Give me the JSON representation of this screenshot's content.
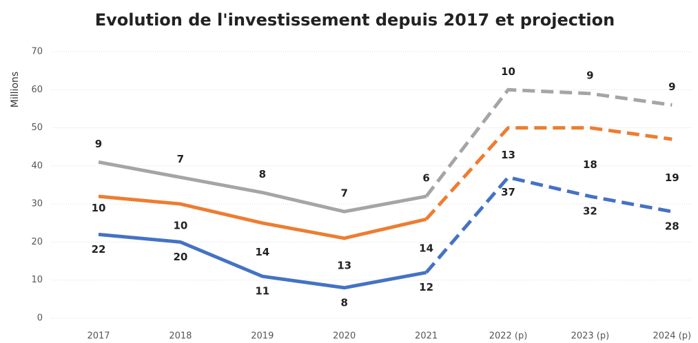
{
  "chart_data": {
    "type": "stacked_line",
    "title": "Evolution de l'investissement depuis 2017 et projection",
    "y_label": "Millions",
    "categories": [
      "2017",
      "2018",
      "2019",
      "2020",
      "2021",
      "2022 (p)",
      "2023 (p)",
      "2024 (p)"
    ],
    "series": [
      {
        "color": "#4472c4",
        "values": [
          22,
          20,
          11,
          8,
          12,
          37,
          32,
          28
        ]
      },
      {
        "color": "#ed7d31",
        "values": [
          10,
          10,
          14,
          13,
          14,
          13,
          18,
          19
        ]
      },
      {
        "color": "#a5a5a5",
        "values": [
          9,
          7,
          8,
          7,
          6,
          10,
          9,
          9
        ]
      }
    ],
    "dashed_from_index": 4,
    "ylim": [
      0,
      70
    ],
    "yticks": [
      0,
      10,
      20,
      30,
      40,
      50,
      60,
      70
    ],
    "grid": true
  }
}
